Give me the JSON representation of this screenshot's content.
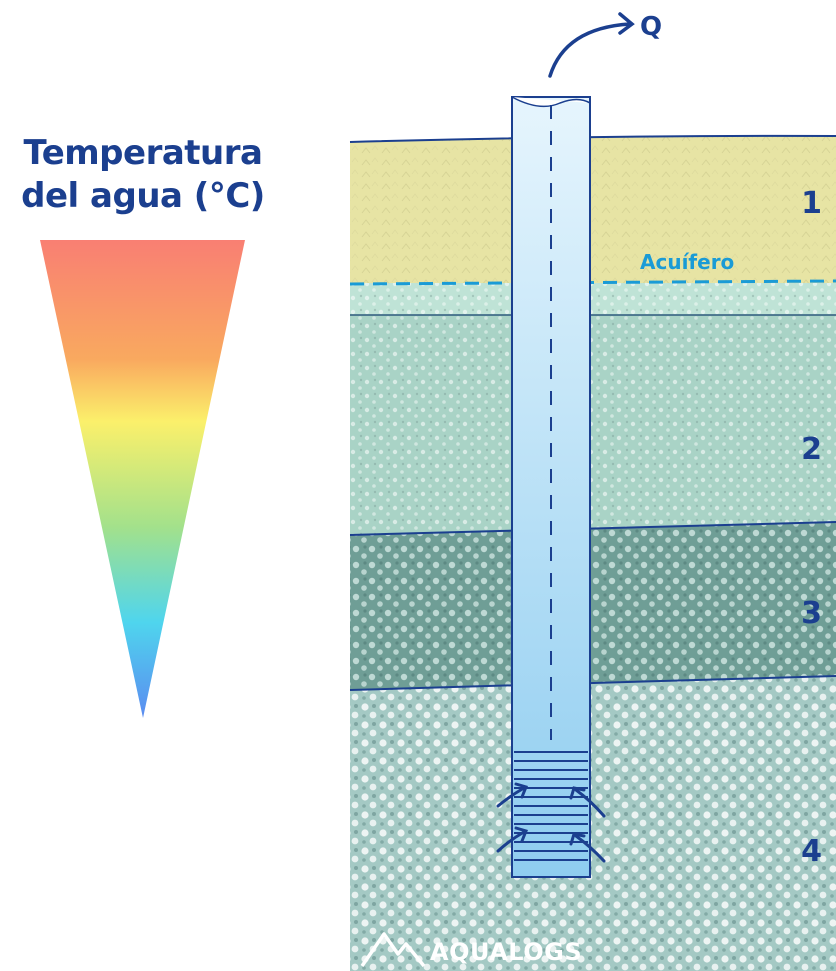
{
  "title": {
    "line1": "Temperatura",
    "line2": "del agua (°C)"
  },
  "flow_label": "Q",
  "aquifer_label": "Acuífero",
  "layers": [
    {
      "number": "1",
      "color": "#e7e4a4"
    },
    {
      "number": "2",
      "color": "#a9d3c6"
    },
    {
      "number": "3",
      "color": "#6f9e96"
    },
    {
      "number": "4",
      "color": "#a4c9c4"
    }
  ],
  "brand": "AQUALOGS",
  "colors": {
    "title": "#1b3f8f",
    "aquifer_line": "#1a9bd6",
    "pipe_fill_top": "#e6f5fd",
    "pipe_fill_bottom": "#8fcdf0",
    "gradient_top": "#f97f73",
    "gradient_mid_warm": "#f9a95f",
    "gradient_yellow": "#fbf06b",
    "gradient_green": "#a3e18b",
    "gradient_cyan": "#4fd5ee",
    "gradient_bottom": "#5b8bf0"
  },
  "icons": {
    "temperature_scale": "gradient-triangle",
    "discharge": "curved-arrow-right",
    "inflow": "curved-arrow-up",
    "brand_logo": "mountain-logo"
  }
}
